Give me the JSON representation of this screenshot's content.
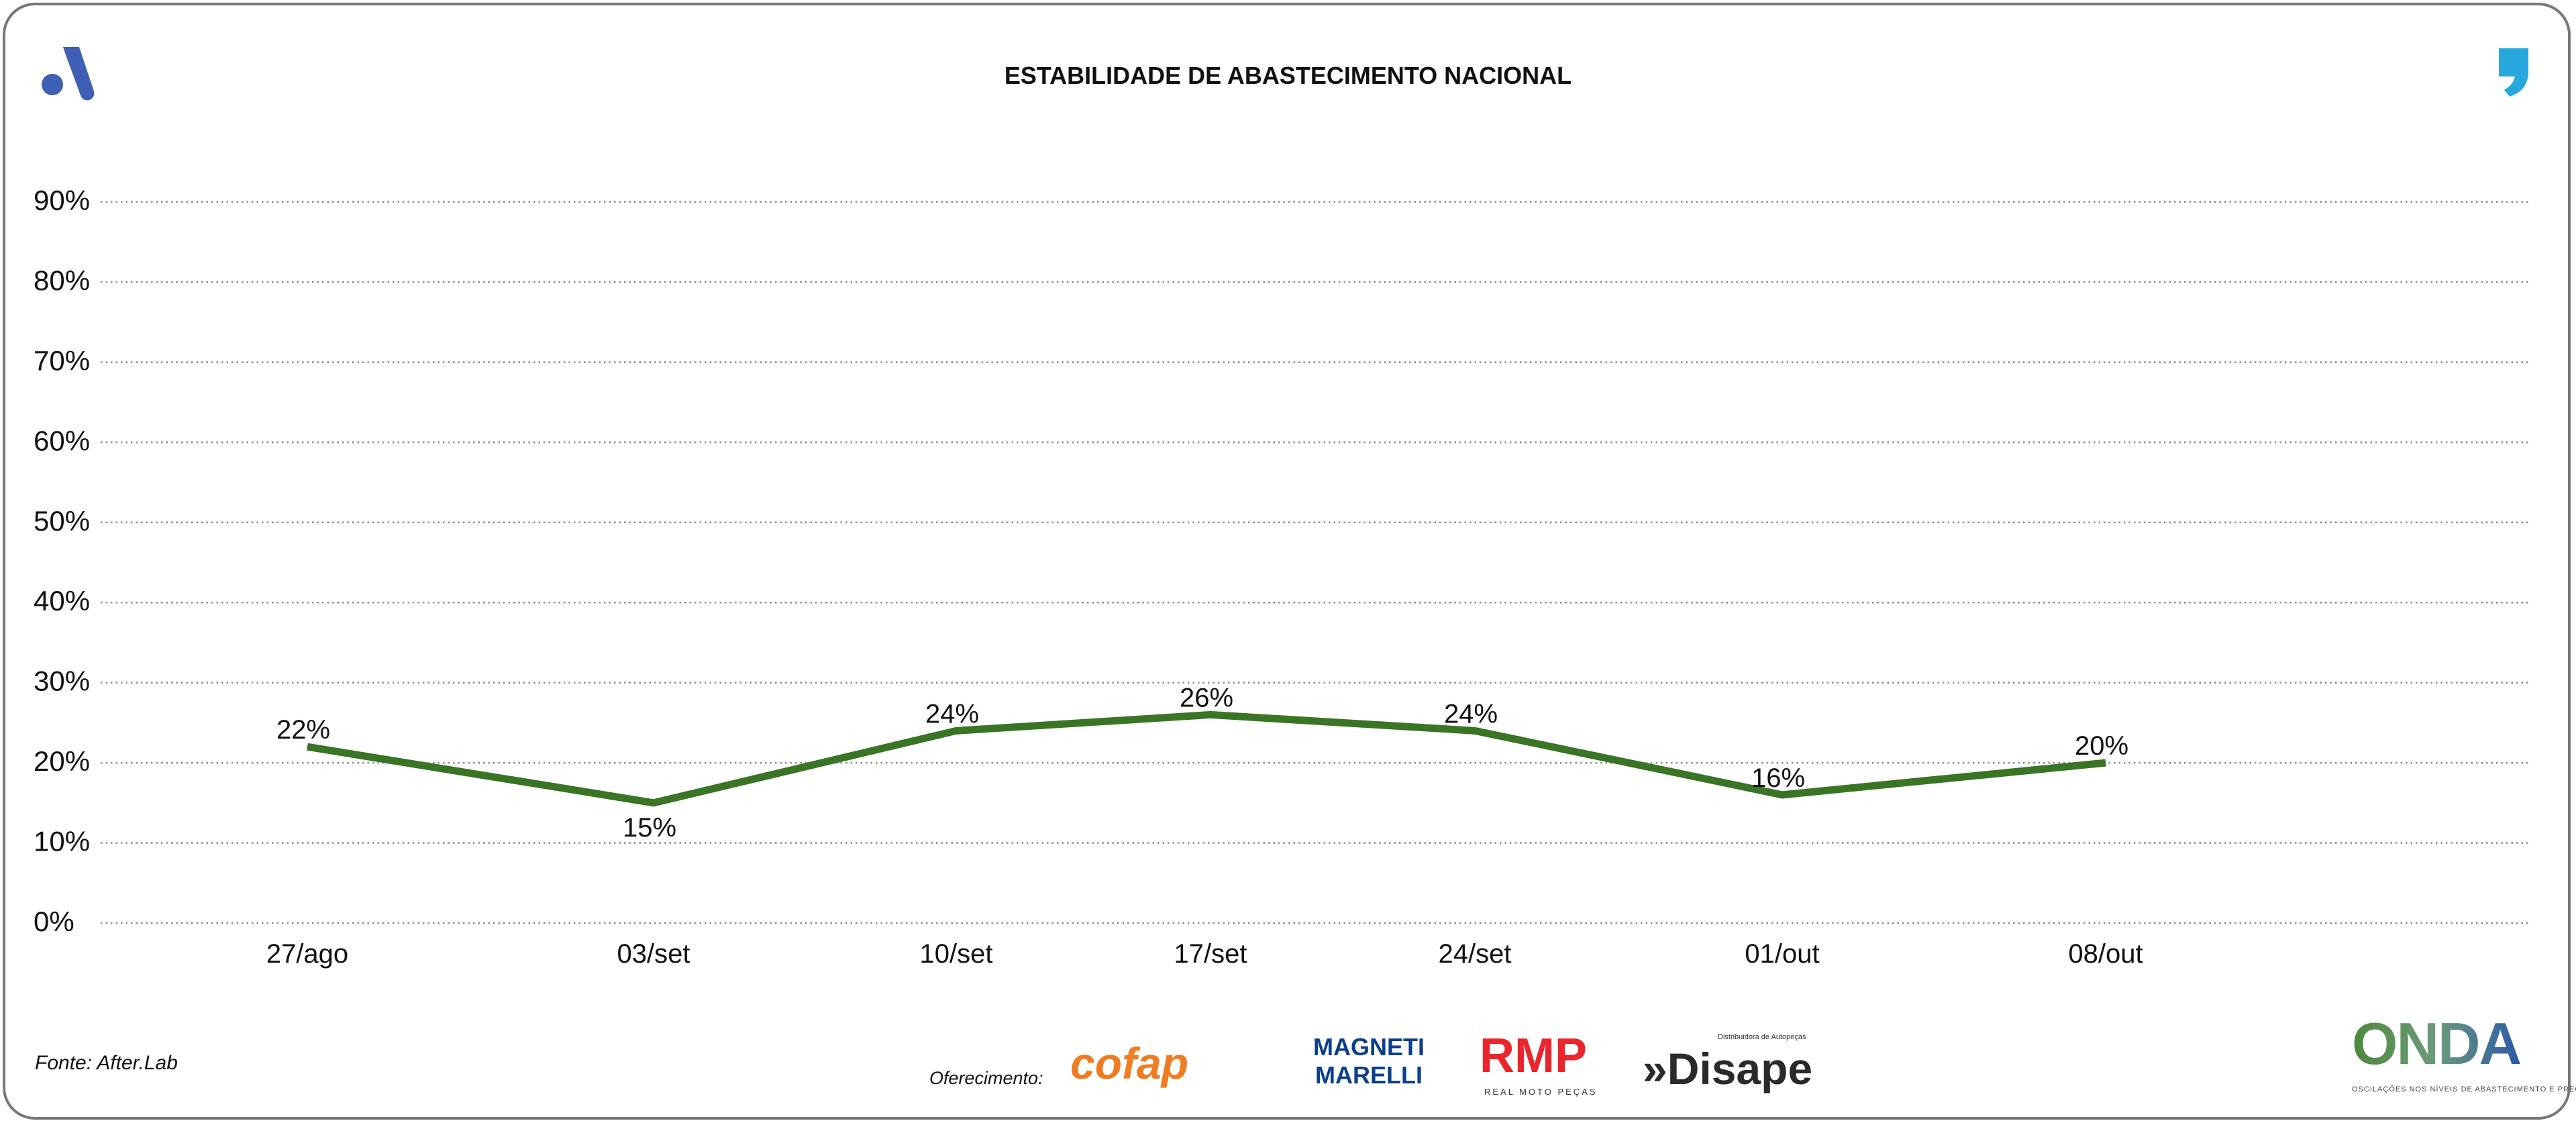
{
  "header": {
    "title": "ESTABILIDADE DE ABASTECIMENTO NACIONAL"
  },
  "footer": {
    "source": "Fonte: After.Lab",
    "sponsor_label": "Oferecimento:",
    "sponsors": [
      "cofap",
      "MAGNETI MARELLI",
      "RMP",
      "REAL MOTO PEÇAS",
      "Disape",
      "Distribuidora de Autopeças"
    ],
    "brand": "ONDA",
    "brand_tagline": "OSCILAÇÕES NOS NÍVEIS DE ABASTECIMENTO E PREÇO"
  },
  "colors": {
    "line": "#3a7425",
    "grid": "#888888",
    "logo_a": "#3f5fb5",
    "logo_quote": "#27a7dc"
  },
  "chart_data": {
    "type": "line",
    "title": "ESTABILIDADE DE ABASTECIMENTO NACIONAL",
    "categories": [
      "27/ago",
      "03/set",
      "10/set",
      "17/set",
      "24/set",
      "01/out",
      "08/out"
    ],
    "series": [
      {
        "values": [
          22,
          15,
          24,
          26,
          24,
          16,
          20
        ],
        "labels": [
          "22%",
          "15%",
          "24%",
          "26%",
          "24%",
          "16%",
          "20%"
        ]
      }
    ],
    "yticks": [
      "0%",
      "10%",
      "20%",
      "30%",
      "40%",
      "50%",
      "60%",
      "70%",
      "80%",
      "90%"
    ],
    "ylim": [
      0,
      90
    ],
    "grid": true,
    "gridstyle": "dotted horizontal",
    "legend": "none",
    "xlabel": "",
    "ylabel": ""
  }
}
